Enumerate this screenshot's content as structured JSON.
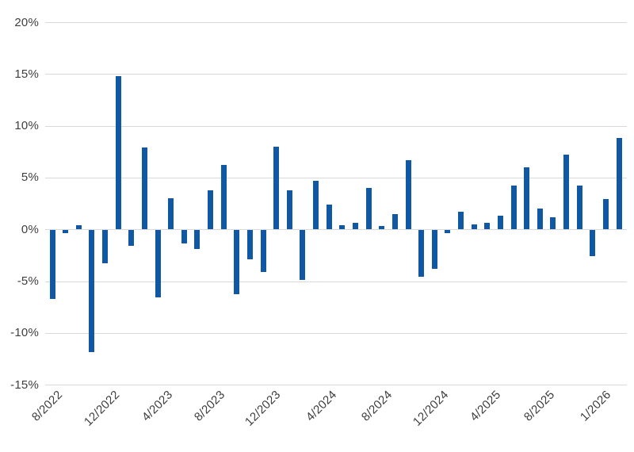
{
  "chart_data": {
    "type": "bar",
    "title": "",
    "xlabel": "",
    "ylabel": "",
    "ylim": [
      -15,
      20
    ],
    "grid": true,
    "legend_position": "none",
    "bar_color": "#1158a4",
    "grid_color": "#d9d9d9",
    "label_color": "#3f3f3f",
    "y_ticks": [
      {
        "label": "20%",
        "value": 20
      },
      {
        "label": "15%",
        "value": 15
      },
      {
        "label": "10%",
        "value": 10
      },
      {
        "label": "5%",
        "value": 5
      },
      {
        "label": "0%",
        "value": 0
      },
      {
        "label": "-5%",
        "value": -5
      },
      {
        "label": "-10%",
        "value": -10
      },
      {
        "label": "-15%",
        "value": -15
      }
    ],
    "x_tick_labels": [
      {
        "label": "8/2022",
        "pos": 1.9
      },
      {
        "label": "12/2022",
        "pos": 11.7
      },
      {
        "label": "4/2023",
        "pos": 20.8
      },
      {
        "label": "8/2023",
        "pos": 29.8
      },
      {
        "label": "12/2023",
        "pos": 39.4
      },
      {
        "label": "4/2024",
        "pos": 49.0
      },
      {
        "label": "8/2024",
        "pos": 58.6
      },
      {
        "label": "12/2024",
        "pos": 68.3
      },
      {
        "label": "4/2025",
        "pos": 77.2
      },
      {
        "label": "8/2025",
        "pos": 86.5
      },
      {
        "label": "1/2026",
        "pos": 96.2
      }
    ],
    "values": [
      -6.6,
      -0.3,
      0.4,
      -11.8,
      -3.2,
      14.8,
      -1.5,
      7.9,
      -6.5,
      3.0,
      -1.3,
      -1.8,
      3.8,
      6.2,
      -6.2,
      -2.8,
      -4.0,
      8.0,
      3.8,
      -4.8,
      4.7,
      2.4,
      0.4,
      0.6,
      4.0,
      0.3,
      1.5,
      6.7,
      -4.5,
      -3.7,
      -0.3,
      1.7,
      0.5,
      0.6,
      1.3,
      4.2,
      6.0,
      2.0,
      1.2,
      7.2,
      4.2,
      -2.5,
      2.9,
      8.8
    ]
  }
}
